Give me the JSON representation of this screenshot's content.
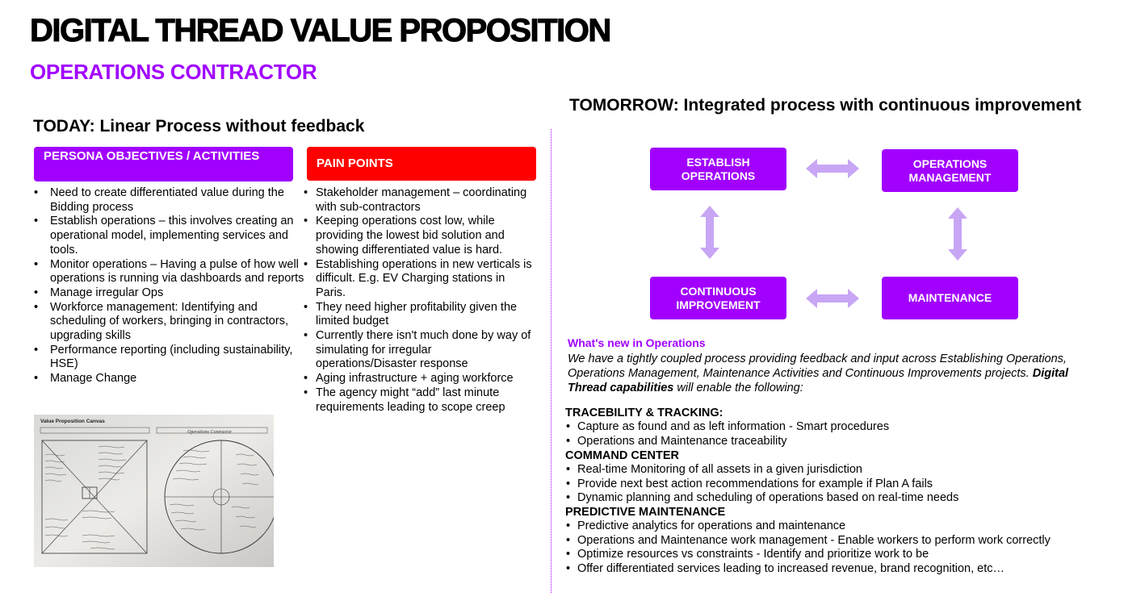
{
  "title": "DIGITAL THREAD VALUE PROPOSITION",
  "subtitle": "OPERATIONS CONTRACTOR",
  "today": {
    "heading": "TODAY: Linear Process without feedback",
    "persona": {
      "label": "PERSONA OBJECTIVES / ACTIVITIES",
      "items": [
        "Need to create differentiated value during the Bidding process",
        "Establish operations – this involves creating an operational model, implementing services and tools.",
        "Monitor operations – Having a pulse of how well operations is running via dashboards and reports",
        "Manage irregular Ops",
        "Workforce management:  Identifying and scheduling of workers, bringing in contractors, upgrading skills",
        "Performance reporting (including sustainability, HSE)",
        "Manage Change"
      ]
    },
    "pain": {
      "label": "PAIN POINTS",
      "items": [
        "Stakeholder management – coordinating with sub-contractors",
        "Keeping operations cost low, while providing the lowest bid solution and showing differentiated value is hard.",
        "Establishing operations in new verticals is difficult. E.g. EV Charging stations in Paris.",
        "They need higher profitability given the limited budget",
        "Currently there isn't much done by way of simulating for irregular operations/Disaster response",
        "Aging infrastructure + aging workforce",
        "The agency might “add” last minute requirements leading to scope creep"
      ]
    },
    "canvas": {
      "title": "Value Proposition Canvas",
      "handwritten_title": "Operations Contractor"
    }
  },
  "tomorrow": {
    "heading": "TOMORROW: Integrated process with continuous improvement",
    "boxes": {
      "establish": "ESTABLISH OPERATIONS",
      "ops_mgmt": "OPERATIONS MANAGEMENT",
      "continuous": "CONTINUOUS IMPROVEMENT",
      "maintenance": "MAINTENANCE"
    },
    "whats_new_title": "What's new in Operations",
    "intro_text": "We have a tightly coupled process providing feedback and input across Establishing Operations, Operations Management, Maintenance Activities and Continuous Improvements projects. ",
    "intro_bold": "Digital Thread capabilities",
    "intro_end": " will enable the following:",
    "sections": [
      {
        "heading": "TRACEBILITY & TRACKING:",
        "items": [
          "Capture as found and as left information - Smart procedures",
          "Operations and Maintenance traceability"
        ]
      },
      {
        "heading": "COMMAND CENTER",
        "items": [
          "Real-time Monitoring of all assets in a given jurisdiction",
          "Provide next best action recommendations for example if Plan A fails",
          "Dynamic planning and scheduling of operations based on real-time needs"
        ]
      },
      {
        "heading": "PREDICTIVE MAINTENANCE",
        "items": [
          "Predictive analytics for operations and maintenance",
          "Operations and Maintenance work management - Enable workers to perform work correctly",
          "Optimize resources vs constraints  - Identify and prioritize work to be",
          "Offer differentiated services leading to increased revenue, brand recognition, etc…"
        ]
      }
    ]
  },
  "colors": {
    "purple": "#a100ff",
    "red": "#ff0000",
    "arrow": "#c8a6f5"
  }
}
